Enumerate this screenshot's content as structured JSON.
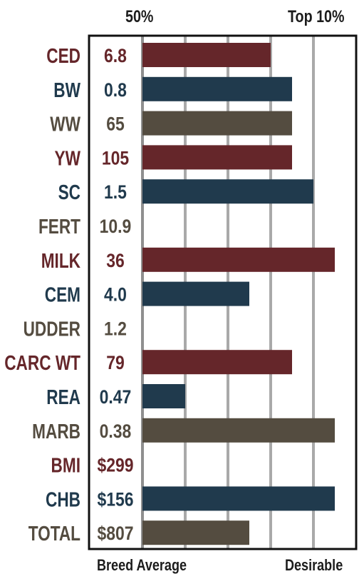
{
  "chart_data": {
    "type": "bar",
    "orientation": "horizontal",
    "header": {
      "left": "50%",
      "right": "Top 10%"
    },
    "footer": {
      "left": "Breed Average",
      "right": "Desirable"
    },
    "grid": true,
    "xlim": [
      0,
      1
    ],
    "colors": {
      "red": "#65262a",
      "blue": "#203a4d",
      "gray": "#544c40"
    },
    "traits": [
      {
        "name": "CED",
        "value": "6.8",
        "level": 0.6,
        "color": "red"
      },
      {
        "name": "BW",
        "value": "0.8",
        "level": 0.7,
        "color": "blue"
      },
      {
        "name": "WW",
        "value": "65",
        "level": 0.7,
        "color": "gray"
      },
      {
        "name": "YW",
        "value": "105",
        "level": 0.7,
        "color": "red"
      },
      {
        "name": "SC",
        "value": "1.5",
        "level": 0.8,
        "color": "blue"
      },
      {
        "name": "FERT",
        "value": "10.9",
        "level": 0,
        "color": "gray"
      },
      {
        "name": "MILK",
        "value": "36",
        "level": 0.9,
        "color": "red"
      },
      {
        "name": "CEM",
        "value": "4.0",
        "level": 0.5,
        "color": "blue"
      },
      {
        "name": "UDDER",
        "value": "1.2",
        "level": 0,
        "color": "gray"
      },
      {
        "name": "CARC WT",
        "value": "79",
        "level": 0.7,
        "color": "red"
      },
      {
        "name": "REA",
        "value": "0.47",
        "level": 0.2,
        "color": "blue"
      },
      {
        "name": "MARB",
        "value": "0.38",
        "level": 0.9,
        "color": "gray"
      },
      {
        "name": "BMI",
        "value": "$299",
        "level": 0,
        "color": "red"
      },
      {
        "name": "CHB",
        "value": "$156",
        "level": 0.9,
        "color": "blue"
      },
      {
        "name": "TOTAL",
        "value": "$807",
        "level": 0.5,
        "color": "gray"
      }
    ]
  }
}
